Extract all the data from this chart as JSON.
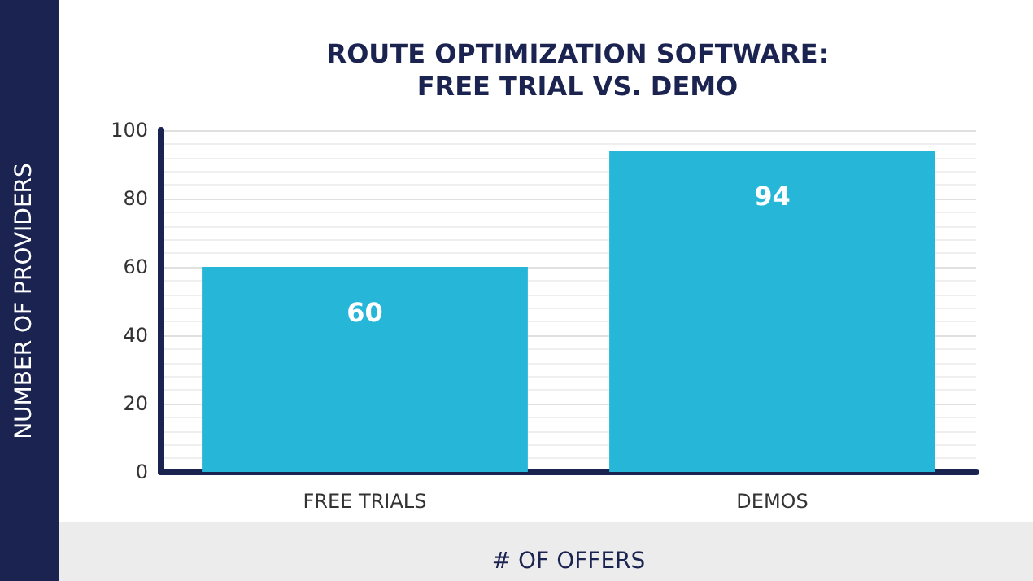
{
  "chart_data": {
    "type": "bar",
    "title": "ROUTE OPTIMIZATION SOFTWARE:\nFREE TRIAL VS. DEMO",
    "xlabel": "# OF OFFERS",
    "ylabel": "NUMBER OF PROVIDERS",
    "categories": [
      "FREE TRIALS",
      "DEMOS"
    ],
    "values": [
      60,
      94
    ],
    "color": "#25b6d8",
    "ylim": [
      0,
      100
    ],
    "yticks": [
      0,
      20,
      40,
      60,
      80,
      100
    ],
    "grid": "y",
    "data_labels": true
  }
}
